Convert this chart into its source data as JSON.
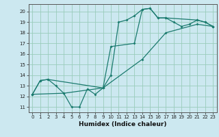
{
  "title": "",
  "xlabel": "Humidex (Indice chaleur)",
  "bg_color": "#cce8f0",
  "line_color": "#1a7a6e",
  "grid_color": "#99ccbb",
  "xlim": [
    -0.5,
    23.5
  ],
  "ylim": [
    10.5,
    20.7
  ],
  "xticks": [
    0,
    1,
    2,
    3,
    4,
    5,
    6,
    7,
    8,
    9,
    10,
    11,
    12,
    13,
    14,
    15,
    16,
    17,
    18,
    19,
    20,
    21,
    22,
    23
  ],
  "yticks": [
    11,
    12,
    13,
    14,
    15,
    16,
    17,
    18,
    19,
    20
  ],
  "line1_x": [
    0,
    1,
    2,
    3,
    4,
    5,
    6,
    7,
    8,
    9,
    10,
    11,
    12,
    13,
    14,
    15,
    16,
    17,
    18,
    19,
    20,
    21,
    22,
    23
  ],
  "line1_y": [
    12.2,
    13.5,
    13.6,
    13.0,
    12.3,
    11.0,
    11.0,
    12.7,
    12.2,
    12.8,
    14.0,
    19.0,
    19.2,
    19.6,
    20.2,
    20.3,
    19.4,
    19.4,
    19.0,
    18.6,
    18.8,
    19.2,
    19.0,
    18.6
  ],
  "line2_x": [
    0,
    1,
    2,
    9,
    10,
    13,
    14,
    15,
    16,
    17,
    21,
    22,
    23
  ],
  "line2_y": [
    12.2,
    13.5,
    13.6,
    12.8,
    16.7,
    17.0,
    20.2,
    20.3,
    19.4,
    19.4,
    19.2,
    19.0,
    18.6
  ],
  "line3_x": [
    0,
    4,
    9,
    14,
    17,
    21,
    23
  ],
  "line3_y": [
    12.2,
    12.3,
    12.8,
    15.5,
    18.0,
    18.8,
    18.6
  ]
}
